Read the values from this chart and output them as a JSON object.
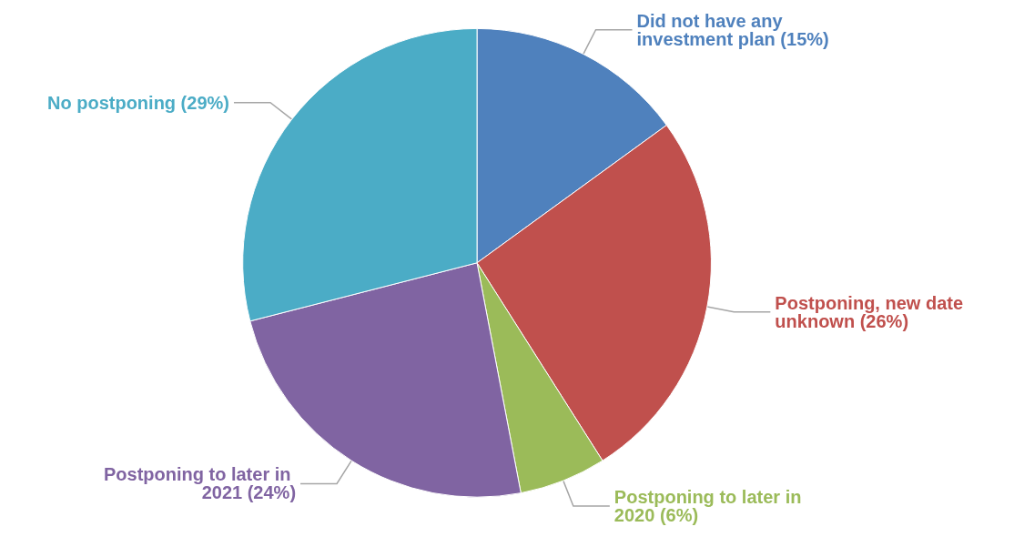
{
  "chart_data": {
    "type": "pie",
    "categories": [
      "Did not have any investment plan (15%)",
      "Postponing, new date unknown (26%)",
      "Postponing to later in 2020 (6%)",
      "Postponing to later in 2021 (24%)",
      "No postponing (29%)"
    ],
    "values": [
      15,
      26,
      6,
      24,
      29
    ],
    "colors": [
      "#4f81bd",
      "#c0504d",
      "#9bbb59",
      "#8064a2",
      "#4bacc6"
    ],
    "legend": false
  }
}
